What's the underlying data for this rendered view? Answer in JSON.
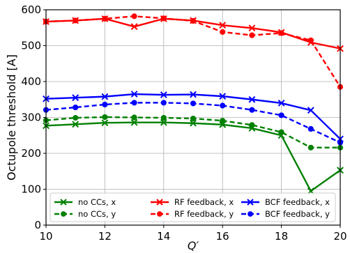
{
  "chart_data": {
    "type": "line",
    "xlabel": "Q′",
    "ylabel": "Octupole threshold [A]",
    "xlim": [
      10,
      20
    ],
    "ylim": [
      0,
      600
    ],
    "x_ticks": [
      "10",
      "12",
      "14",
      "16",
      "18",
      "20"
    ],
    "y_ticks": [
      "0",
      "100",
      "200",
      "300",
      "400",
      "500",
      "600"
    ],
    "grid": true,
    "legend_position": "bottom",
    "x": [
      10,
      11,
      12,
      13,
      14,
      15,
      16,
      17,
      18,
      19,
      20
    ],
    "series": [
      {
        "name": "no CCs, x",
        "color": "#008000",
        "marker": "x",
        "dashed": false,
        "values": [
          277,
          281,
          285,
          286,
          286,
          284,
          280,
          270,
          250,
          95,
          153
        ]
      },
      {
        "name": "no CCs, y",
        "color": "#008000",
        "marker": "o",
        "dashed": true,
        "values": [
          292,
          299,
          301,
          300,
          299,
          297,
          291,
          279,
          259,
          216,
          216
        ]
      },
      {
        "name": "RF feedback, x",
        "color": "#ff0000",
        "marker": "x",
        "dashed": false,
        "values": [
          567,
          570,
          575,
          553,
          575,
          570,
          557,
          549,
          537,
          509,
          492
        ]
      },
      {
        "name": "RF feedback, y",
        "color": "#ff0000",
        "marker": "o",
        "dashed": true,
        "values": [
          567,
          570,
          575,
          582,
          576,
          569,
          538,
          529,
          535,
          515,
          385
        ]
      },
      {
        "name": "BCF feedback, x",
        "color": "#0000ff",
        "marker": "x",
        "dashed": false,
        "values": [
          352,
          355,
          358,
          365,
          363,
          364,
          359,
          350,
          340,
          320,
          240
        ]
      },
      {
        "name": "BCF feedback, y",
        "color": "#0000ff",
        "marker": "o",
        "dashed": true,
        "values": [
          321,
          328,
          336,
          341,
          341,
          339,
          333,
          321,
          306,
          268,
          230
        ]
      }
    ]
  }
}
